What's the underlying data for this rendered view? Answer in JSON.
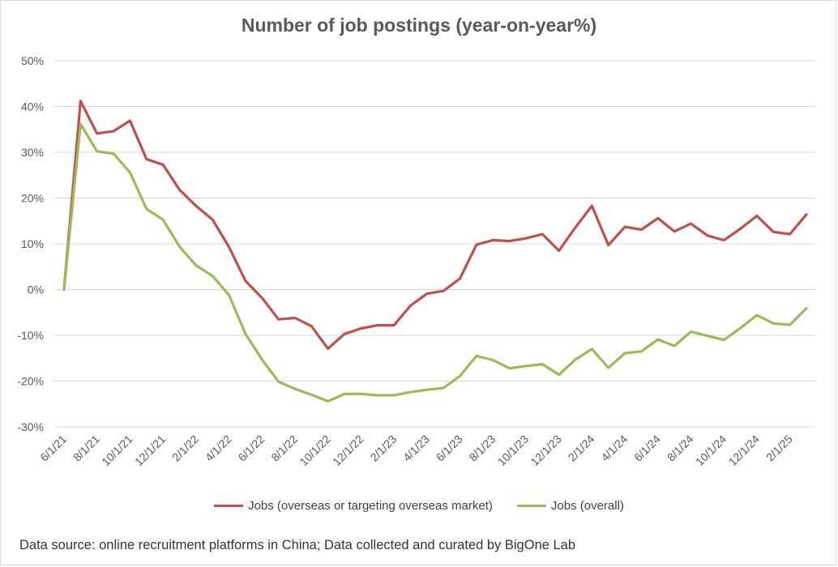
{
  "chart_data": {
    "type": "line",
    "title": "Number of job postings (year-on-year%)",
    "source": "Data source: online recruitment platforms in China; Data collected and curated by BigOne Lab",
    "ylim": [
      -30,
      50
    ],
    "yticks": [
      -30,
      -20,
      -10,
      0,
      10,
      20,
      30,
      40,
      50
    ],
    "ytick_labels": [
      "-30%",
      "-20%",
      "-10%",
      "0%",
      "10%",
      "20%",
      "30%",
      "40%",
      "50%"
    ],
    "grid": true,
    "legend": "bottom",
    "x": [
      "6/1/21",
      "7/1/21",
      "8/1/21",
      "9/1/21",
      "10/1/21",
      "11/1/21",
      "12/1/21",
      "1/1/22",
      "2/1/22",
      "3/1/22",
      "4/1/22",
      "5/1/22",
      "6/1/22",
      "7/1/22",
      "8/1/22",
      "9/1/22",
      "10/1/22",
      "11/1/22",
      "12/1/22",
      "1/1/23",
      "2/1/23",
      "3/1/23",
      "4/1/23",
      "5/1/23",
      "6/1/23",
      "7/1/23",
      "8/1/23",
      "9/1/23",
      "10/1/23",
      "11/1/23",
      "12/1/23",
      "1/1/24",
      "2/1/24",
      "3/1/24",
      "4/1/24",
      "5/1/24",
      "6/1/24",
      "7/1/24",
      "8/1/24",
      "9/1/24",
      "10/1/24",
      "11/1/24",
      "12/1/24",
      "1/1/25",
      "2/1/25",
      "3/1/25"
    ],
    "xtick_labels": [
      "6/1/21",
      "8/1/21",
      "10/1/21",
      "12/1/21",
      "2/1/22",
      "4/1/22",
      "6/1/22",
      "8/1/22",
      "10/1/22",
      "12/1/22",
      "2/1/23",
      "4/1/23",
      "6/1/23",
      "8/1/23",
      "10/1/23",
      "12/1/23",
      "2/1/24",
      "4/1/24",
      "6/1/24",
      "8/1/24",
      "10/1/24",
      "12/1/24",
      "2/1/25"
    ],
    "series": [
      {
        "name": "Jobs (overseas or targeting overseas market)",
        "color": "#c0504d",
        "values": [
          0,
          41.2,
          34.1,
          34.6,
          36.9,
          28.5,
          27.3,
          21.8,
          18.3,
          15.3,
          9.3,
          1.9,
          -1.8,
          -6.5,
          -6.2,
          -8.0,
          -12.9,
          -9.7,
          -8.5,
          -7.8,
          -7.8,
          -3.5,
          -0.9,
          -0.3,
          2.4,
          9.8,
          10.8,
          10.6,
          11.2,
          12.1,
          8.5,
          13.6,
          18.3,
          9.7,
          13.7,
          13.1,
          15.6,
          12.7,
          14.4,
          11.8,
          10.8,
          13.3,
          16.1,
          12.6,
          12.1,
          16.4
        ]
      },
      {
        "name": "Jobs (overall)",
        "color": "#9bbb59",
        "values": [
          0,
          36.2,
          30.2,
          29.7,
          25.6,
          17.6,
          15.3,
          9.4,
          5.3,
          3.0,
          -1.2,
          -9.7,
          -15.3,
          -20.1,
          -21.7,
          -23.0,
          -24.4,
          -22.8,
          -22.8,
          -23.1,
          -23.1,
          -22.4,
          -21.9,
          -21.5,
          -18.9,
          -14.5,
          -15.4,
          -17.2,
          -16.7,
          -16.3,
          -18.6,
          -15.3,
          -13.0,
          -17.1,
          -13.9,
          -13.5,
          -10.9,
          -12.3,
          -9.2,
          -10.1,
          -11.0,
          -8.4,
          -5.6,
          -7.4,
          -7.7,
          -4.1
        ]
      }
    ]
  }
}
